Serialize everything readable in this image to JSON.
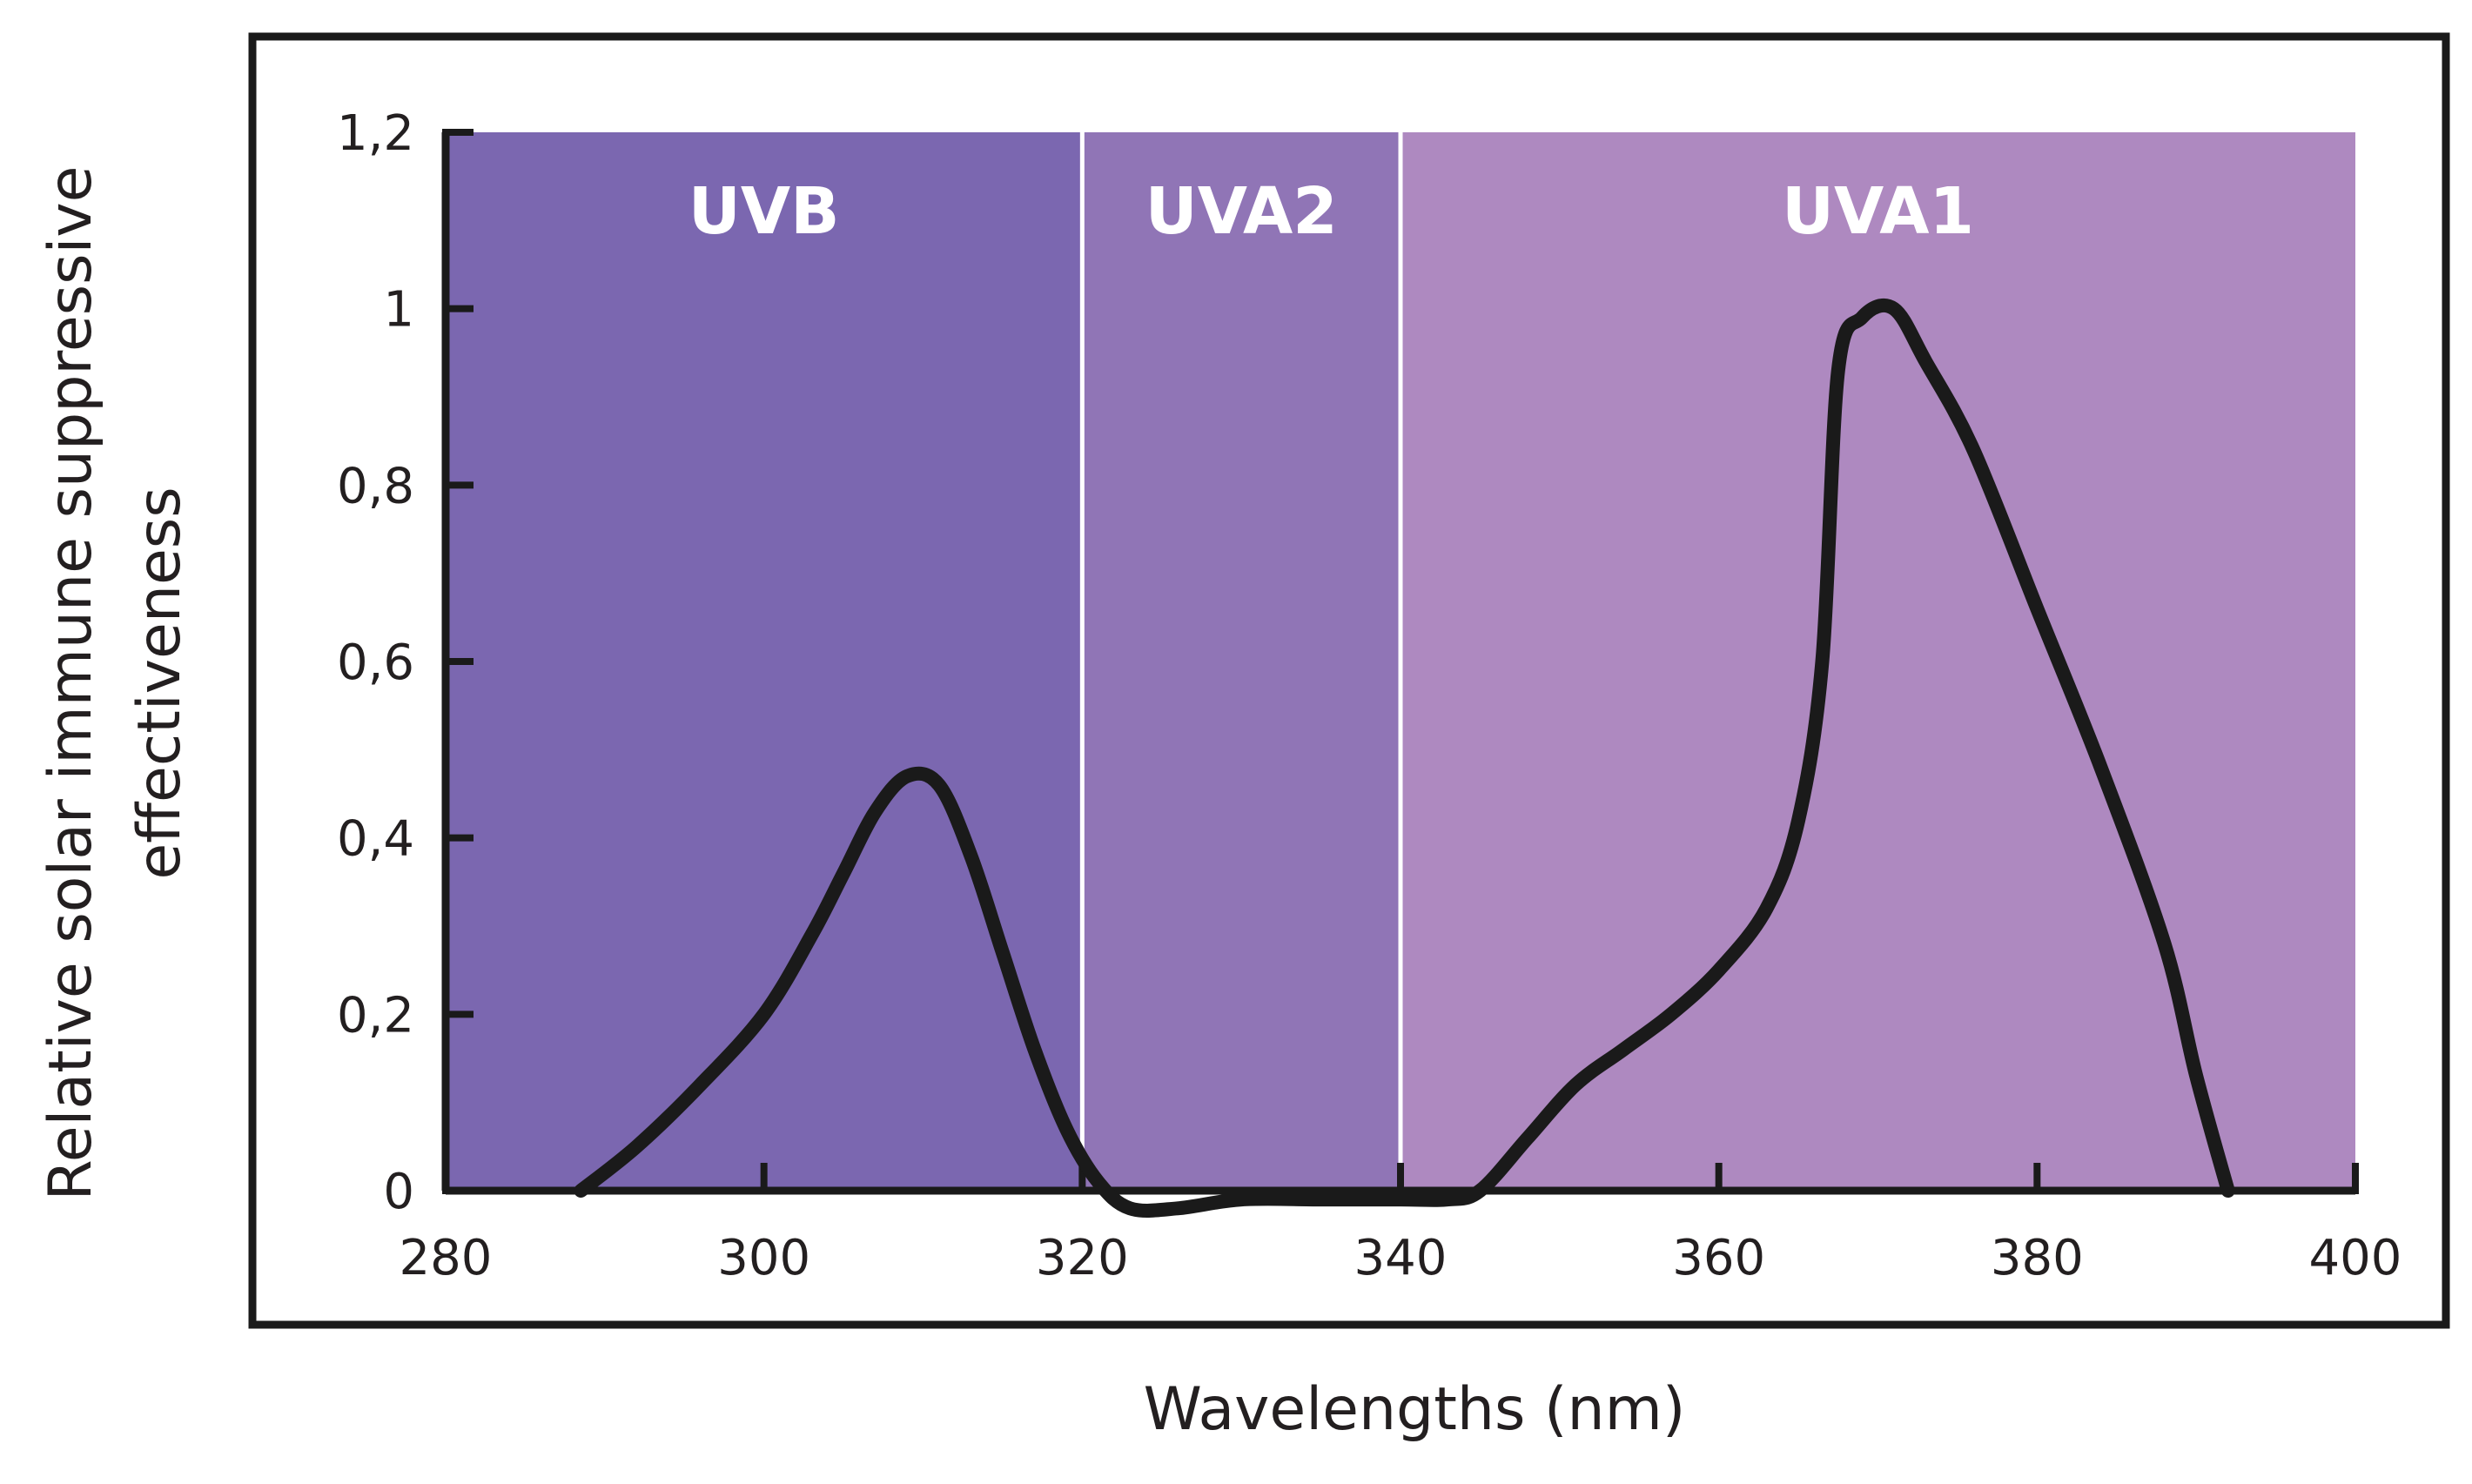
{
  "chart_data": {
    "type": "line",
    "title": "",
    "xlabel": "Wavelengths (nm)",
    "ylabel_lines": [
      "Relative solar immune suppressive",
      "effectiveness"
    ],
    "xlim": [
      280,
      400
    ],
    "ylim": [
      0,
      1.2
    ],
    "x_ticks": [
      280,
      300,
      320,
      340,
      360,
      380,
      400
    ],
    "x_tick_labels": [
      "280",
      "300",
      "320",
      "340",
      "360",
      "380",
      "400"
    ],
    "y_ticks": [
      0,
      0.2,
      0.4,
      0.6,
      0.8,
      1,
      1.2
    ],
    "y_tick_labels": [
      "0",
      "0,2",
      "0,4",
      "0,6",
      "0,8",
      "1",
      "1,2"
    ],
    "grid": false,
    "bands": [
      {
        "label": "UVB",
        "x0": 280,
        "x1": 320,
        "color": "#7b67b0"
      },
      {
        "label": "UVA2",
        "x0": 320,
        "x1": 340,
        "color": "#9075b6"
      },
      {
        "label": "UVA1",
        "x0": 340,
        "x1": 400,
        "color": "#ae89c0"
      }
    ],
    "series": [
      {
        "color": "#1a1a1a",
        "points": [
          [
            288.5,
            0.0
          ],
          [
            292,
            0.05
          ],
          [
            296,
            0.12
          ],
          [
            300,
            0.2
          ],
          [
            303,
            0.29
          ],
          [
            305,
            0.36
          ],
          [
            307,
            0.43
          ],
          [
            309,
            0.47
          ],
          [
            311,
            0.46
          ],
          [
            313,
            0.38
          ],
          [
            315,
            0.27
          ],
          [
            317,
            0.16
          ],
          [
            319,
            0.07
          ],
          [
            321,
            0.01
          ],
          [
            323,
            -0.02
          ],
          [
            326,
            -0.02
          ],
          [
            330,
            -0.01
          ],
          [
            335,
            -0.01
          ],
          [
            340,
            -0.01
          ],
          [
            343,
            -0.01
          ],
          [
            345,
            0.0
          ],
          [
            348,
            0.06
          ],
          [
            351,
            0.12
          ],
          [
            354,
            0.16
          ],
          [
            357,
            0.2
          ],
          [
            360,
            0.25
          ],
          [
            363,
            0.32
          ],
          [
            365,
            0.42
          ],
          [
            366.5,
            0.6
          ],
          [
            367.5,
            0.93
          ],
          [
            369,
            0.99
          ],
          [
            371,
            1.0
          ],
          [
            373,
            0.94
          ],
          [
            376,
            0.84
          ],
          [
            380,
            0.66
          ],
          [
            384,
            0.48
          ],
          [
            388,
            0.28
          ],
          [
            390,
            0.13
          ],
          [
            392,
            0.0
          ]
        ]
      }
    ]
  }
}
